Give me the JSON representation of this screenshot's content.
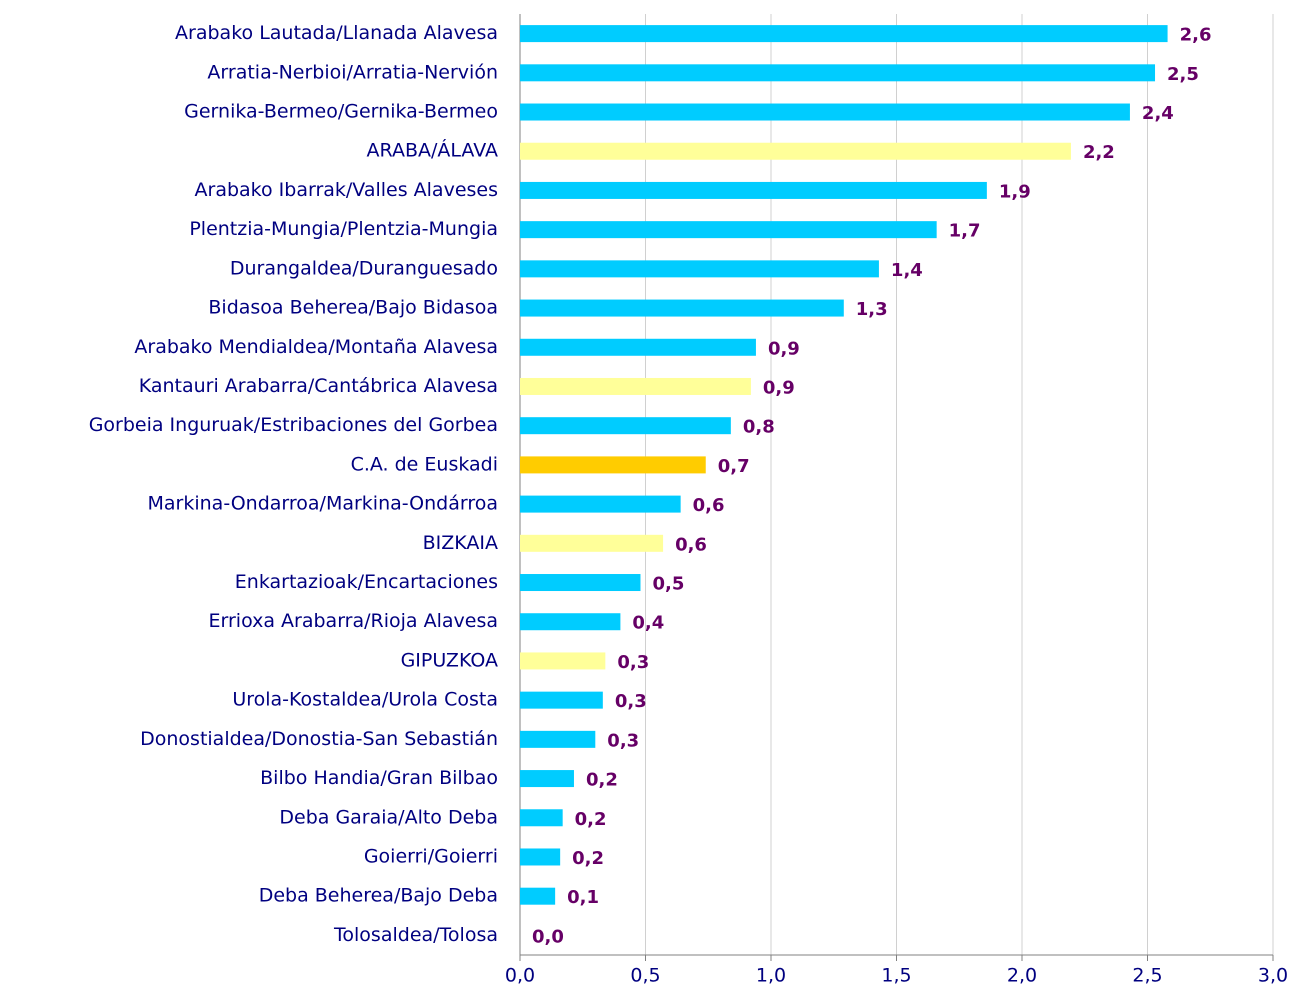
{
  "chart_data": {
    "type": "bar",
    "orientation": "horizontal",
    "categories": [
      "Arabako Lautada/Llanada Alavesa",
      "Arratia-Nerbioi/Arratia-Nervión",
      "Gernika-Bermeo/Gernika-Bermeo",
      "ARABA/ÁLAVA",
      "Arabako Ibarrak/Valles Alaveses",
      "Plentzia-Mungia/Plentzia-Mungia",
      "Durangaldea/Duranguesado",
      "Bidasoa Beherea/Bajo Bidasoa",
      "Arabako Mendialdea/Montaña Alavesa",
      "Kantauri Arabarra/Cantábrica Alavesa",
      "Gorbeia Inguruak/Estribaciones del Gorbea",
      "C.A. de Euskadi",
      "Markina-Ondarroa/Markina-Ondárroa",
      "BIZKAIA",
      "Enkartazioak/Encartaciones",
      "Errioxa Arabarra/Rioja Alavesa",
      "GIPUZKOA",
      "Urola-Kostaldea/Urola Costa",
      "Donostialdea/Donostia-San Sebastián",
      "Bilbo Handia/Gran Bilbao",
      "Deba Garaia/Alto Deba",
      "Goierri/Goierri",
      "Deba Beherea/Bajo Deba",
      "Tolosaldea/Tolosa"
    ],
    "values": [
      2.58,
      2.53,
      2.43,
      2.195,
      1.86,
      1.66,
      1.43,
      1.29,
      0.94,
      0.92,
      0.84,
      0.74,
      0.64,
      0.57,
      0.48,
      0.4,
      0.34,
      0.33,
      0.3,
      0.215,
      0.17,
      0.16,
      0.14,
      0
    ],
    "value_labels": [
      "2,6",
      "2,5",
      "2,4",
      "2,2",
      "1,9",
      "1,7",
      "1,4",
      "1,3",
      "0,9",
      "0,9",
      "0,8",
      "0,7",
      "0,6",
      "0,6",
      "0,5",
      "0,4",
      "0,3",
      "0,3",
      "0,3",
      "0,2",
      "0,2",
      "0,2",
      "0,1",
      "0,0"
    ],
    "colors": [
      "#00ccff",
      "#00ccff",
      "#00ccff",
      "#ffff99",
      "#00ccff",
      "#00ccff",
      "#00ccff",
      "#00ccff",
      "#00ccff",
      "#ffff99",
      "#00ccff",
      "#ffcc00",
      "#00ccff",
      "#ffff99",
      "#00ccff",
      "#00ccff",
      "#ffff99",
      "#00ccff",
      "#00ccff",
      "#00ccff",
      "#00ccff",
      "#00ccff",
      "#00ccff",
      "#00ccff"
    ],
    "xlim": [
      0,
      3
    ],
    "xticks": [
      {
        "value": 0,
        "label": "0,0"
      },
      {
        "value": 0.5,
        "label": "0,5"
      },
      {
        "value": 1,
        "label": "1,0"
      },
      {
        "value": 1.5,
        "label": "1,5"
      },
      {
        "value": 2,
        "label": "2,0"
      },
      {
        "value": 2.5,
        "label": "2,5"
      },
      {
        "value": 3,
        "label": "3,0"
      }
    ],
    "grid": true
  }
}
